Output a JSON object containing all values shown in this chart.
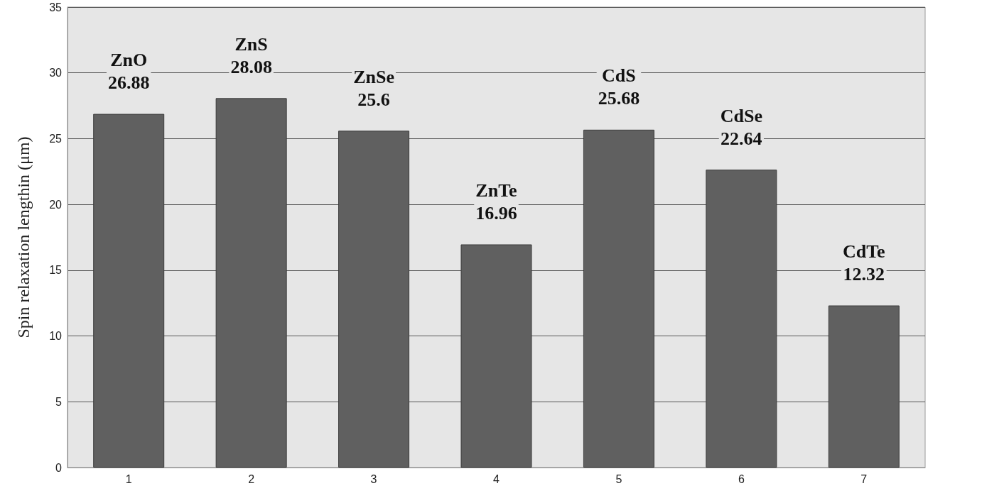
{
  "chart_data": {
    "type": "bar",
    "ylabel": "Spin relaxation lengthin (μm)",
    "categories": [
      "1",
      "2",
      "3",
      "4",
      "5",
      "6",
      "7"
    ],
    "values": [
      26.88,
      28.08,
      25.6,
      16.96,
      25.68,
      22.64,
      12.32
    ],
    "value_labels": [
      "ZnO\n26.88",
      "ZnS\n28.08",
      "ZnSe\n25.6",
      "ZnTe\n16.96",
      "CdS\n25.68",
      "CdSe\n22.64",
      "CdTe\n12.32"
    ],
    "color": "#606060",
    "ylim": [
      0,
      35
    ],
    "yticks": [
      0,
      5,
      10,
      15,
      20,
      25,
      30,
      35
    ],
    "grid": "y"
  }
}
